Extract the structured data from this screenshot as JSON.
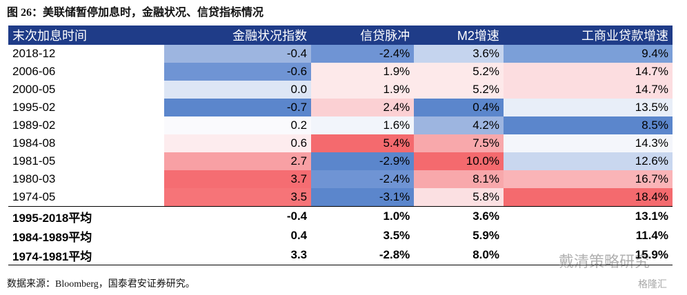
{
  "title": "图 26：美联储暂停加息时，金融状况、信贷指标情况",
  "table": {
    "header": [
      "末次加息时间",
      "金融状况指数",
      "信贷脉冲",
      "M2增速",
      "工商业贷款增速"
    ],
    "rows": [
      [
        "2018-12",
        "-0.4",
        "-2.4%",
        "3.6%",
        "9.4%"
      ],
      [
        "2006-06",
        "-0.6",
        "1.9%",
        "5.2%",
        "14.7%"
      ],
      [
        "2000-05",
        "0.0",
        "1.9%",
        "5.2%",
        "14.7%"
      ],
      [
        "1995-02",
        "-0.7",
        "2.4%",
        "0.4%",
        "13.5%"
      ],
      [
        "1989-02",
        "0.2",
        "1.6%",
        "4.2%",
        "8.5%"
      ],
      [
        "1984-08",
        "0.6",
        "5.4%",
        "7.5%",
        "14.3%"
      ],
      [
        "1981-05",
        "2.7",
        "-2.9%",
        "10.0%",
        "12.6%"
      ],
      [
        "1980-03",
        "3.7",
        "-2.4%",
        "8.1%",
        "16.7%"
      ],
      [
        "1974-05",
        "3.5",
        "-3.1%",
        "5.8%",
        "18.4%"
      ],
      [
        "1995-2018平均",
        "-0.4",
        "1.0%",
        "3.6%",
        "13.1%"
      ],
      [
        "1984-1989平均",
        "0.4",
        "3.5%",
        "5.9%",
        "11.4%"
      ],
      [
        "1974-1981平均",
        "3.3",
        "-2.8%",
        "8.0%",
        "15.9%"
      ]
    ]
  },
  "source": "数据来源：Bloomberg，国泰君安证券研究。",
  "watermark": [
    "戴清策略研究",
    "格隆汇"
  ]
}
